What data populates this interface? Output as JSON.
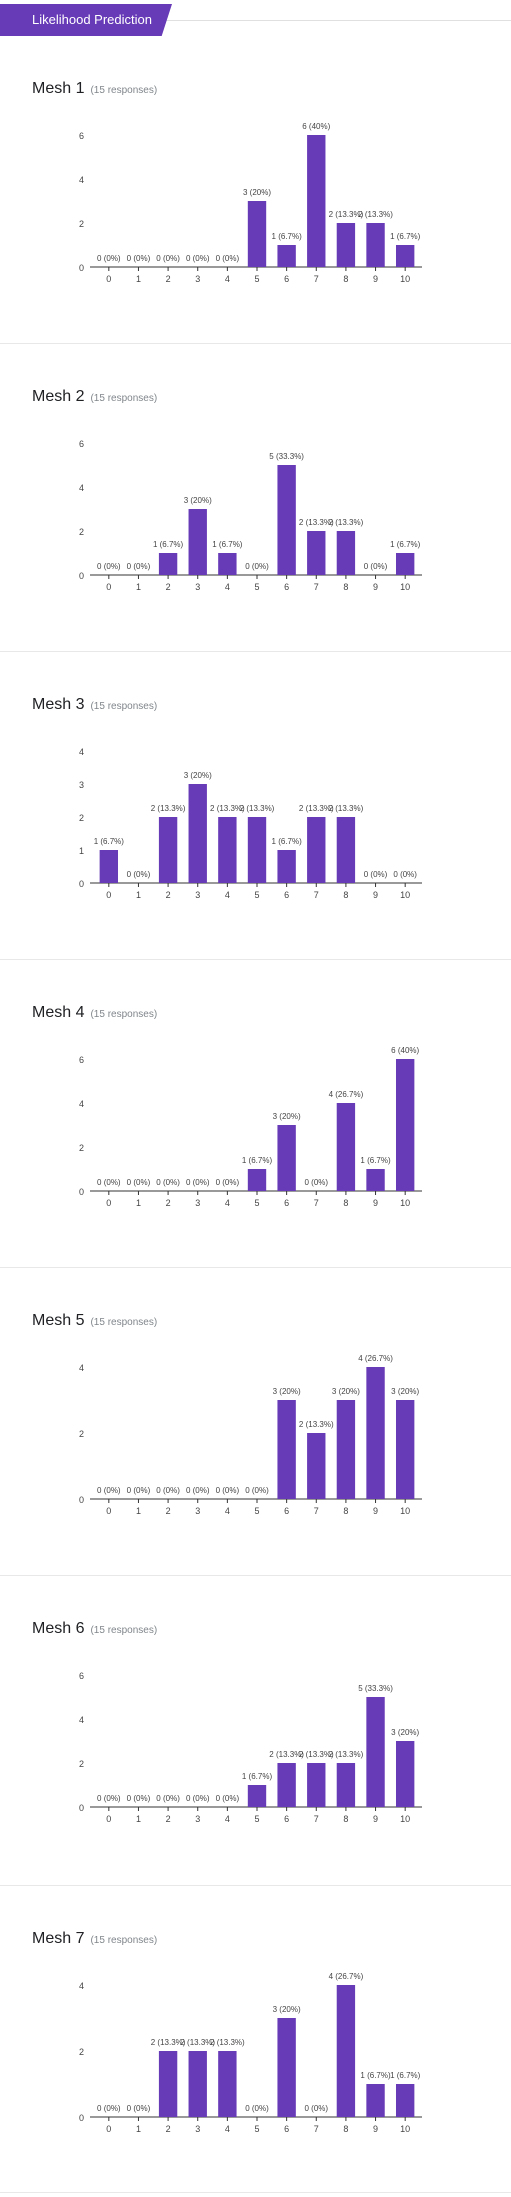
{
  "section": {
    "title": "Likelihood Prediction"
  },
  "colors": {
    "accent": "#673ab7",
    "bar": "#673ab7",
    "axis": "#333333",
    "label": "#444444",
    "muted": "#80868b"
  },
  "questions": [
    {
      "title": "Mesh 1",
      "responses": "(15 responses)"
    },
    {
      "title": "Mesh 2",
      "responses": "(15 responses)"
    },
    {
      "title": "Mesh 3",
      "responses": "(15 responses)"
    },
    {
      "title": "Mesh 4",
      "responses": "(15 responses)"
    },
    {
      "title": "Mesh 5",
      "responses": "(15 responses)"
    },
    {
      "title": "Mesh 6",
      "responses": "(15 responses)"
    },
    {
      "title": "Mesh 7",
      "responses": "(15 responses)"
    }
  ],
  "chart_data": [
    {
      "type": "bar",
      "categories": [
        "0",
        "1",
        "2",
        "3",
        "4",
        "5",
        "6",
        "7",
        "8",
        "9",
        "10"
      ],
      "values": [
        0,
        0,
        0,
        0,
        0,
        3,
        1,
        6,
        2,
        2,
        1
      ],
      "labels": [
        "0 (0%)",
        "0 (0%)",
        "0 (0%)",
        "0 (0%)",
        "0 (0%)",
        "3 (20%)",
        "1 (6.7%)",
        "6 (40%)",
        "2 (13.3%)",
        "2 (13.3%)",
        "1 (6.7%)"
      ],
      "yticks": [
        0,
        2,
        4,
        6
      ],
      "ylim": [
        0,
        6
      ]
    },
    {
      "type": "bar",
      "categories": [
        "0",
        "1",
        "2",
        "3",
        "4",
        "5",
        "6",
        "7",
        "8",
        "9",
        "10"
      ],
      "values": [
        0,
        0,
        1,
        3,
        1,
        0,
        5,
        2,
        2,
        0,
        1
      ],
      "labels": [
        "0 (0%)",
        "0 (0%)",
        "1 (6.7%)",
        "3 (20%)",
        "1 (6.7%)",
        "0 (0%)",
        "5 (33.3%)",
        "2 (13.3%)",
        "2 (13.3%)",
        "0 (0%)",
        "1 (6.7%)"
      ],
      "yticks": [
        0,
        2,
        4,
        6
      ],
      "ylim": [
        0,
        6
      ]
    },
    {
      "type": "bar",
      "categories": [
        "0",
        "1",
        "2",
        "3",
        "4",
        "5",
        "6",
        "7",
        "8",
        "9",
        "10"
      ],
      "values": [
        1,
        0,
        2,
        3,
        2,
        2,
        1,
        2,
        2,
        0,
        0
      ],
      "labels": [
        "1 (6.7%)",
        "0 (0%)",
        "2 (13.3%)",
        "3 (20%)",
        "2 (13.3%)",
        "2 (13.3%)",
        "1 (6.7%)",
        "2 (13.3%)",
        "2 (13.3%)",
        "0 (0%)",
        "0 (0%)"
      ],
      "yticks": [
        0,
        1,
        2,
        3,
        4
      ],
      "ylim": [
        0,
        4
      ]
    },
    {
      "type": "bar",
      "categories": [
        "0",
        "1",
        "2",
        "3",
        "4",
        "5",
        "6",
        "7",
        "8",
        "9",
        "10"
      ],
      "values": [
        0,
        0,
        0,
        0,
        0,
        1,
        3,
        0,
        4,
        1,
        6
      ],
      "labels": [
        "0 (0%)",
        "0 (0%)",
        "0 (0%)",
        "0 (0%)",
        "0 (0%)",
        "1 (6.7%)",
        "3 (20%)",
        "0 (0%)",
        "4 (26.7%)",
        "1 (6.7%)",
        "6 (40%)"
      ],
      "yticks": [
        0,
        2,
        4,
        6
      ],
      "ylim": [
        0,
        6
      ]
    },
    {
      "type": "bar",
      "categories": [
        "0",
        "1",
        "2",
        "3",
        "4",
        "5",
        "6",
        "7",
        "8",
        "9",
        "10"
      ],
      "values": [
        0,
        0,
        0,
        0,
        0,
        0,
        3,
        2,
        3,
        4,
        3
      ],
      "labels": [
        "0 (0%)",
        "0 (0%)",
        "0 (0%)",
        "0 (0%)",
        "0 (0%)",
        "0 (0%)",
        "3 (20%)",
        "2 (13.3%)",
        "3 (20%)",
        "4 (26.7%)",
        "3 (20%)"
      ],
      "yticks": [
        0,
        2,
        4
      ],
      "ylim": [
        0,
        4
      ]
    },
    {
      "type": "bar",
      "categories": [
        "0",
        "1",
        "2",
        "3",
        "4",
        "5",
        "6",
        "7",
        "8",
        "9",
        "10"
      ],
      "values": [
        0,
        0,
        0,
        0,
        0,
        1,
        2,
        2,
        2,
        5,
        3
      ],
      "labels": [
        "0 (0%)",
        "0 (0%)",
        "0 (0%)",
        "0 (0%)",
        "0 (0%)",
        "1 (6.7%)",
        "2 (13.3%)",
        "2 (13.3%)",
        "2 (13.3%)",
        "5 (33.3%)",
        "3 (20%)"
      ],
      "yticks": [
        0,
        2,
        4,
        6
      ],
      "ylim": [
        0,
        6
      ]
    },
    {
      "type": "bar",
      "categories": [
        "0",
        "1",
        "2",
        "3",
        "4",
        "5",
        "6",
        "7",
        "8",
        "9",
        "10"
      ],
      "values": [
        0,
        0,
        2,
        2,
        2,
        0,
        3,
        0,
        4,
        1,
        1
      ],
      "labels": [
        "0 (0%)",
        "0 (0%)",
        "2 (13.3%)",
        "2 (13.3%)",
        "2 (13.3%)",
        "0 (0%)",
        "3 (20%)",
        "0 (0%)",
        "4 (26.7%)",
        "1 (6.7%)",
        "1 (6.7%)"
      ],
      "yticks": [
        0,
        2,
        4
      ],
      "ylim": [
        0,
        4
      ]
    }
  ]
}
